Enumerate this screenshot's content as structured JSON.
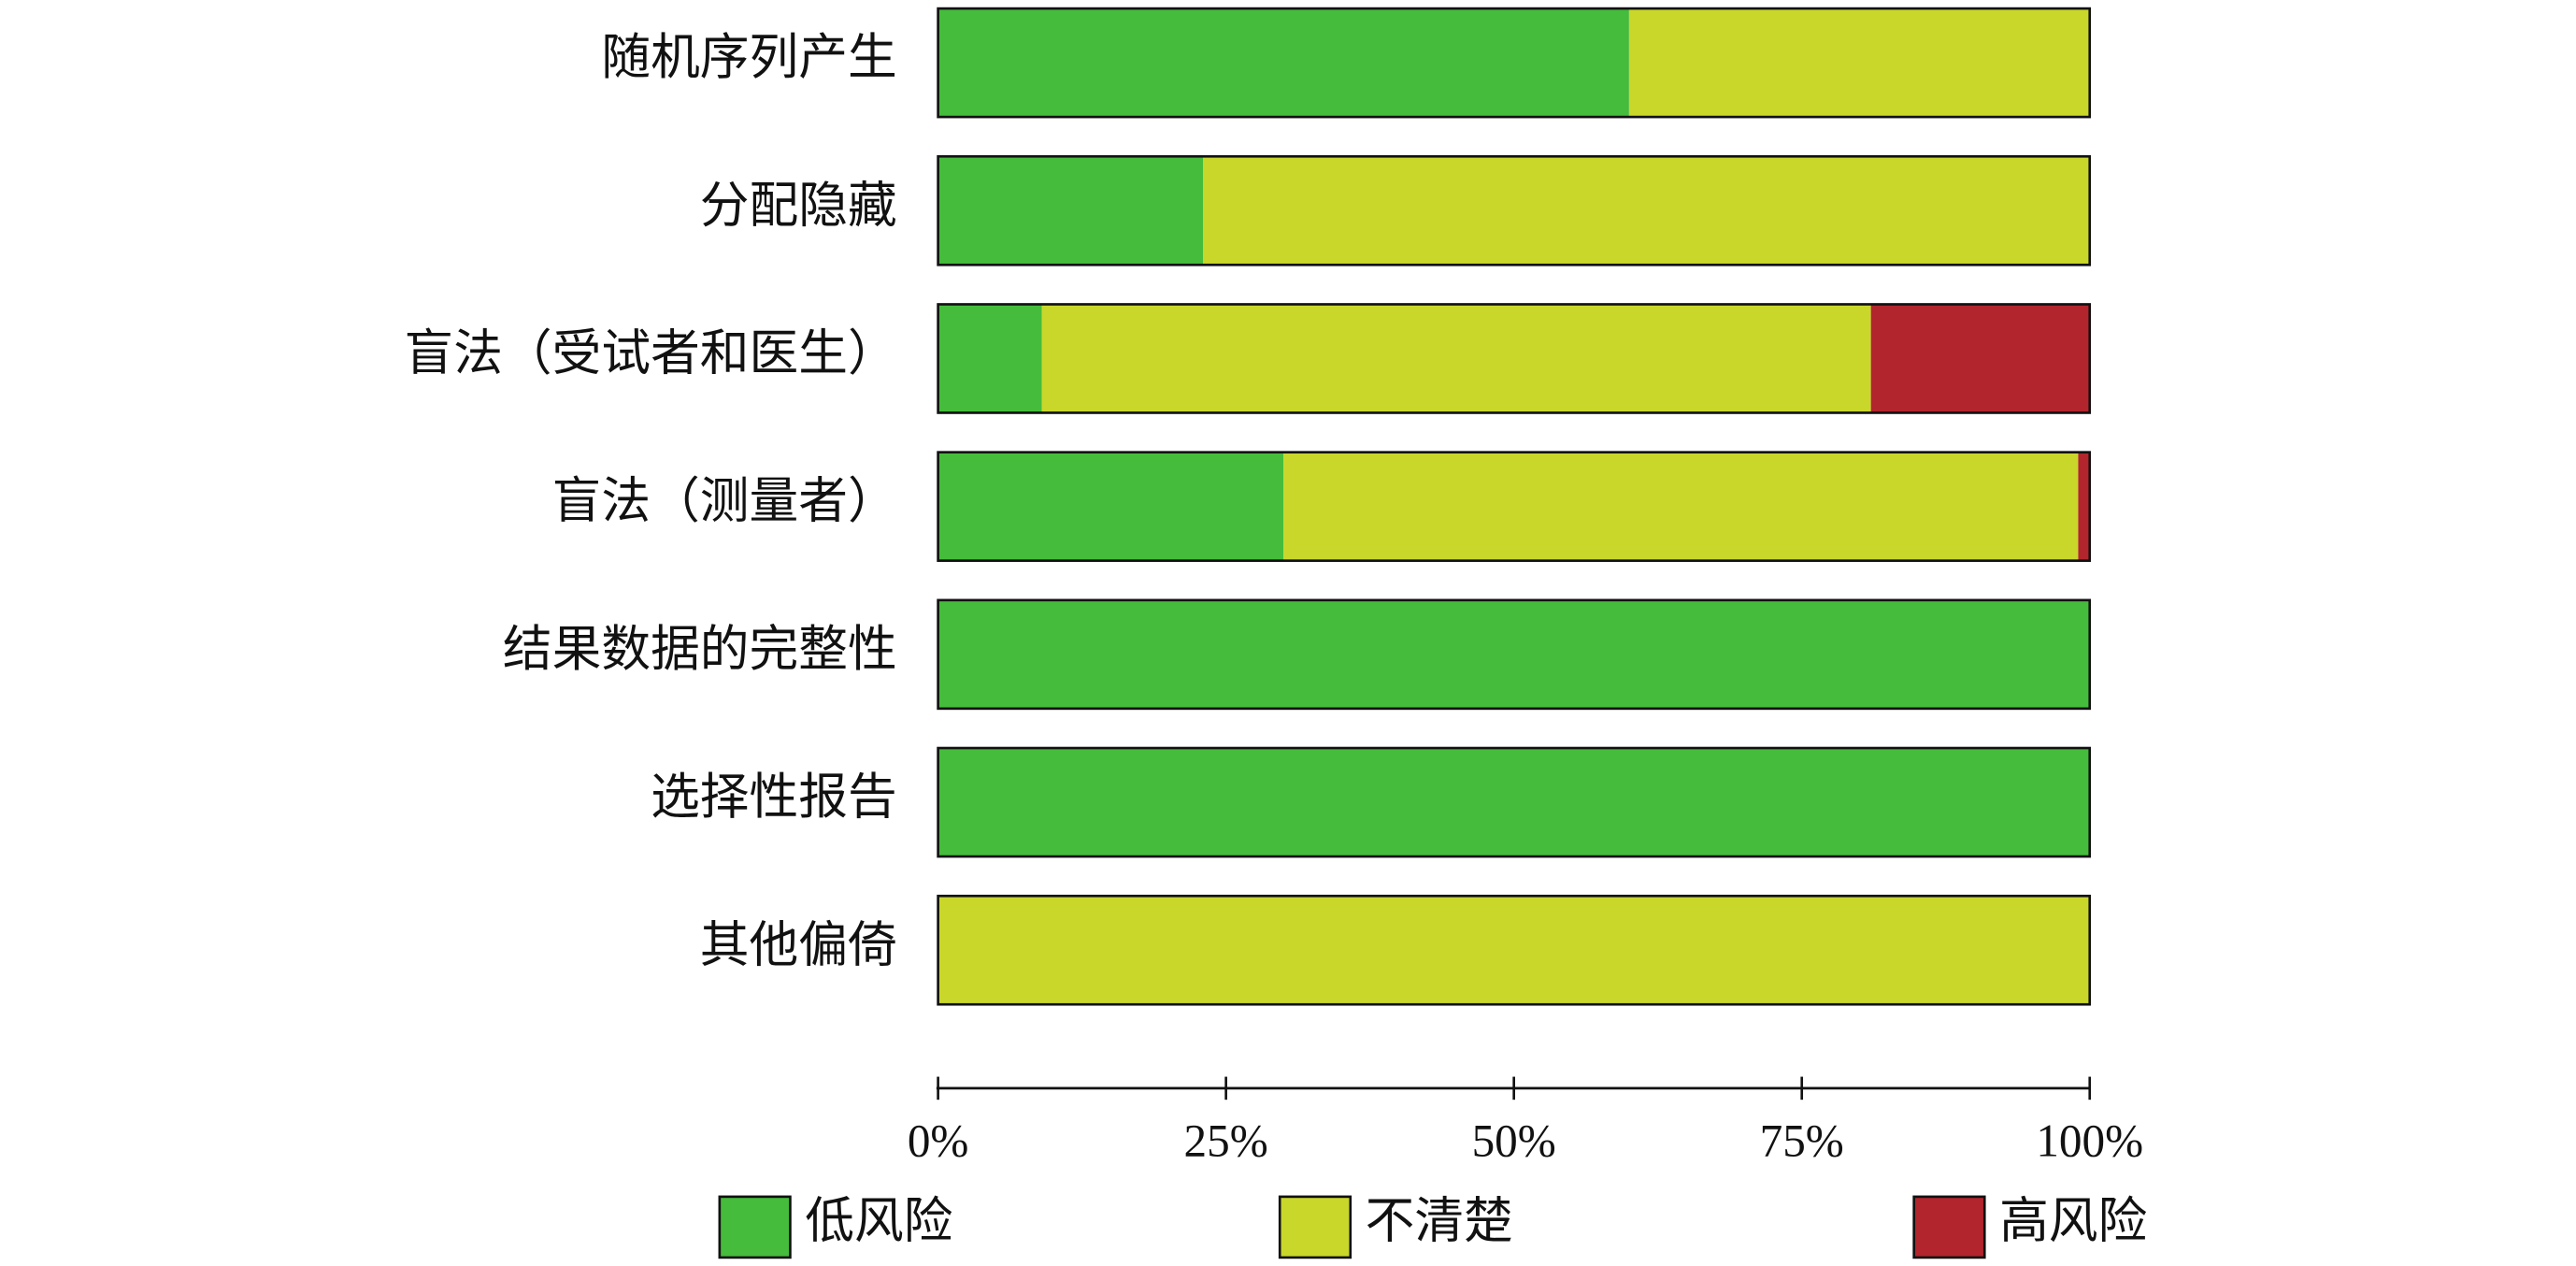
{
  "chart_data": {
    "type": "stacked-bar-horizontal",
    "categories": [
      "随机序列产生",
      "分配隐藏",
      "盲法（受试者和医生）",
      "盲法（测量者）",
      "结果数据的完整性",
      "选择性报告",
      "其他偏倚"
    ],
    "series": [
      {
        "name": "低风险",
        "color": "#45bc3b",
        "values": [
          60,
          23,
          9,
          30,
          100,
          100,
          0
        ]
      },
      {
        "name": "不清楚",
        "color": "#c9d72a",
        "values": [
          40,
          77,
          72,
          69,
          0,
          0,
          100
        ]
      },
      {
        "name": "高风险",
        "color": "#b2252d",
        "values": [
          0,
          0,
          19,
          1,
          0,
          0,
          0
        ]
      }
    ],
    "xlim": [
      0,
      100
    ],
    "xticks": [
      {
        "value": 0,
        "label": "0%"
      },
      {
        "value": 25,
        "label": "25%"
      },
      {
        "value": 50,
        "label": "50%"
      },
      {
        "value": 75,
        "label": "75%"
      },
      {
        "value": 100,
        "label": "100%"
      }
    ],
    "legend": "bottom"
  }
}
